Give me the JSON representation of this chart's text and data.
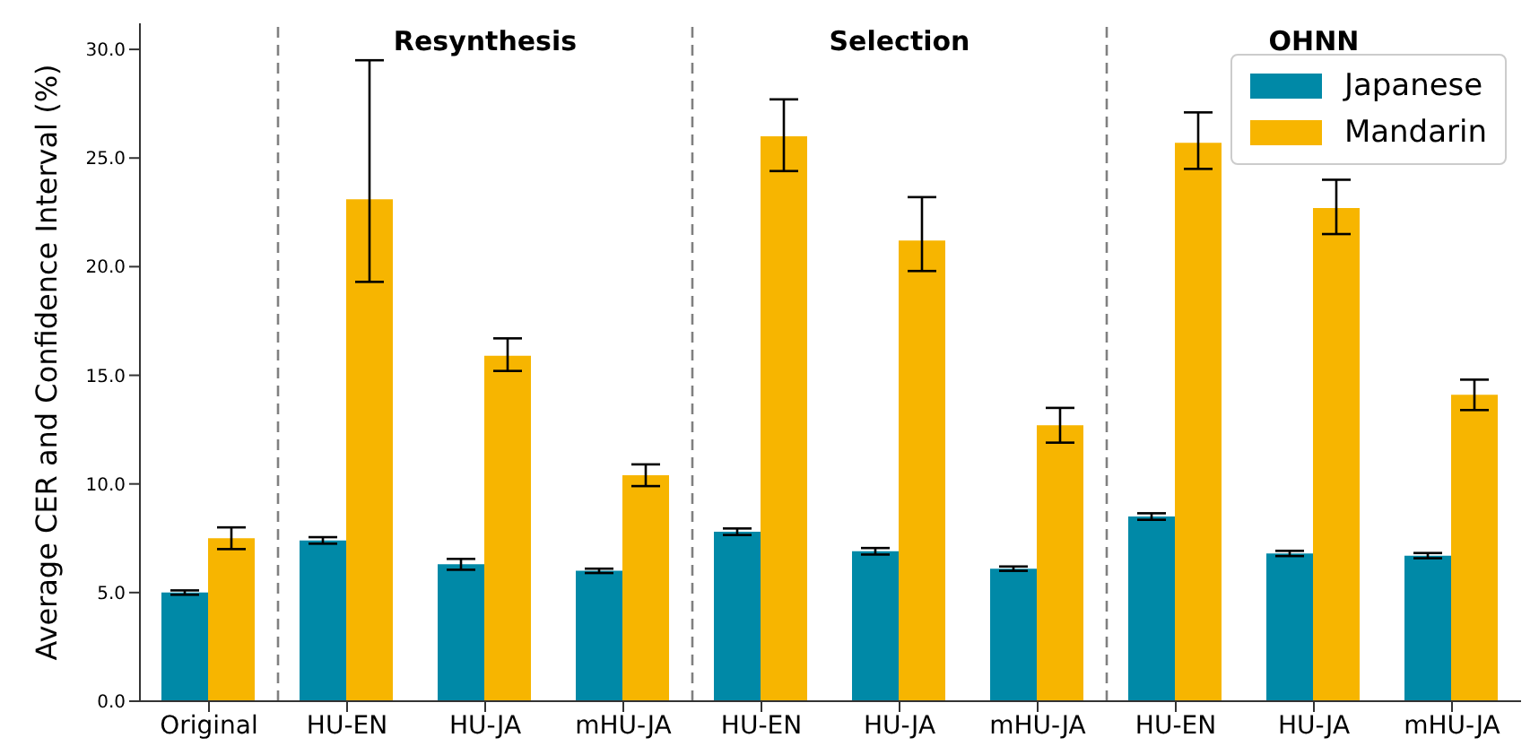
{
  "chart_data": {
    "type": "bar",
    "ylabel": "Average CER and Confidence Interval (%)",
    "categories": [
      "Original",
      "HU-EN",
      "HU-JA",
      "mHU-JA",
      "HU-EN",
      "HU-JA",
      "mHU-JA",
      "HU-EN",
      "HU-JA",
      "mHU-JA"
    ],
    "series": [
      {
        "name": "Japanese",
        "color": "#0089a7",
        "values": [
          5.0,
          7.4,
          6.3,
          6.0,
          7.8,
          6.9,
          6.1,
          8.5,
          6.8,
          6.7
        ],
        "errors": [
          0.1,
          0.15,
          0.25,
          0.1,
          0.15,
          0.15,
          0.1,
          0.15,
          0.12,
          0.12
        ]
      },
      {
        "name": "Mandarin",
        "color": "#f7b500",
        "values": [
          7.5,
          23.1,
          15.9,
          10.4,
          26.0,
          21.2,
          12.7,
          25.7,
          22.7,
          14.1
        ],
        "errors": [
          [
            7.0,
            8.0
          ],
          [
            19.3,
            29.5
          ],
          [
            15.2,
            16.7
          ],
          [
            9.9,
            10.9
          ],
          [
            24.4,
            27.7
          ],
          [
            19.8,
            23.2
          ],
          [
            11.9,
            13.5
          ],
          [
            24.5,
            27.1
          ],
          [
            21.5,
            24.0
          ],
          [
            13.4,
            14.8
          ]
        ]
      }
    ],
    "ylim": [
      0,
      31.2
    ],
    "yticks": [
      {
        "value": 0,
        "label": "0.0"
      },
      {
        "value": 5,
        "label": "5.0"
      },
      {
        "value": 10,
        "label": "10.0"
      },
      {
        "value": 15,
        "label": "15.0"
      },
      {
        "value": 20,
        "label": "20.0"
      },
      {
        "value": 25,
        "label": "25.0"
      },
      {
        "value": 30,
        "label": "30.0"
      }
    ],
    "annotations": [
      "Resynthesis",
      "Selection",
      "OHNN"
    ],
    "legend": "top right"
  }
}
